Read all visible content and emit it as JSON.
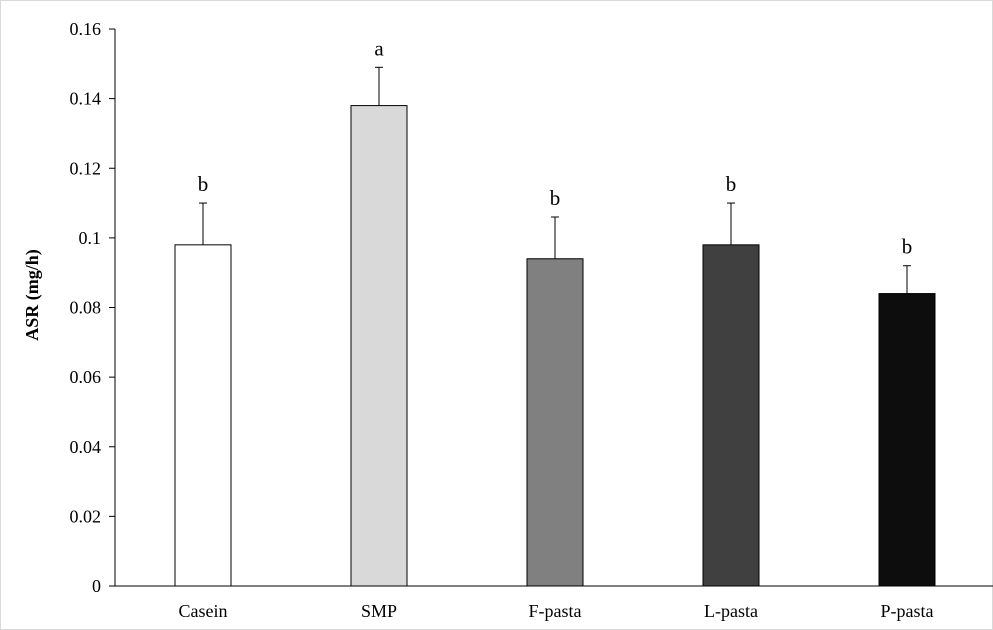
{
  "chart_data": {
    "type": "bar",
    "title": "",
    "xlabel": "",
    "ylabel": "ASR (mg/h)",
    "ylim": [
      0,
      0.16
    ],
    "yticks": [
      0,
      0.02,
      0.04,
      0.06,
      0.08,
      0.1,
      0.12,
      0.14,
      0.16
    ],
    "ytick_labels": [
      "0",
      "0.02",
      "0.04",
      "0.06",
      "0.08",
      "0.1",
      "0.12",
      "0.14",
      "0.16"
    ],
    "grid": false,
    "legend": "none",
    "categories": [
      "Casein",
      "SMP",
      "F-pasta",
      "L-pasta",
      "P-pasta"
    ],
    "values": [
      0.098,
      0.138,
      0.094,
      0.098,
      0.084
    ],
    "errors": [
      0.012,
      0.011,
      0.012,
      0.012,
      0.008
    ],
    "annotations": [
      "b",
      "a",
      "b",
      "b",
      "b"
    ],
    "colors": [
      "#ffffff",
      "#d9d9d9",
      "#808080",
      "#404040",
      "#0d0d0d"
    ]
  }
}
